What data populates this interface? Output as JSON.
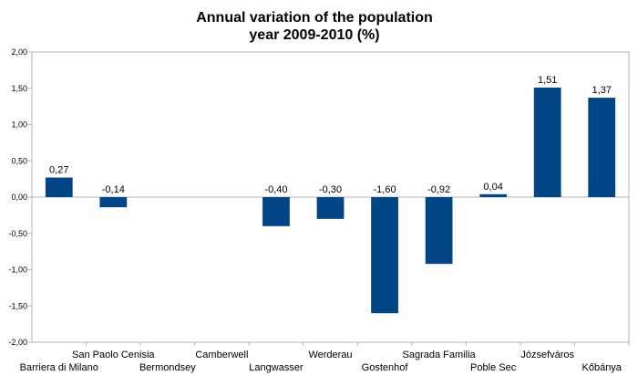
{
  "chart_data": {
    "type": "bar",
    "title_line1": "Annual variation of the population",
    "title_line2": "year 2009-2010 (%)",
    "categories": [
      "Barriera di Milano",
      "San Paolo Cenisia",
      "Bermondsey",
      "Camberwell",
      "Langwasser",
      "Werderau",
      "Gostenhof",
      "Sagrada Familia",
      "Poble Sec",
      "Józsefváros",
      "Kőbánya"
    ],
    "values": [
      0.27,
      -0.14,
      null,
      null,
      -0.4,
      -0.3,
      -1.6,
      -0.92,
      0.04,
      1.51,
      1.37
    ],
    "value_labels": [
      "0,27",
      "-0,14",
      "",
      "",
      "-0,40",
      "-0,30",
      "-1,60",
      "-0,92",
      "0,04",
      "1,51",
      "1,37"
    ],
    "ylim": [
      -2.0,
      2.0
    ],
    "y_ticks": [
      2.0,
      1.5,
      1.0,
      0.5,
      0.0,
      -0.5,
      -1.0,
      -1.5,
      -2.0
    ],
    "y_tick_labels": [
      "2,00",
      "1,50",
      "1,00",
      "0,50",
      "0,00",
      "-0,50",
      "-1,00",
      "-1,50",
      "-2,00"
    ],
    "bar_color": "#004586",
    "grid": false,
    "legend": "none"
  }
}
